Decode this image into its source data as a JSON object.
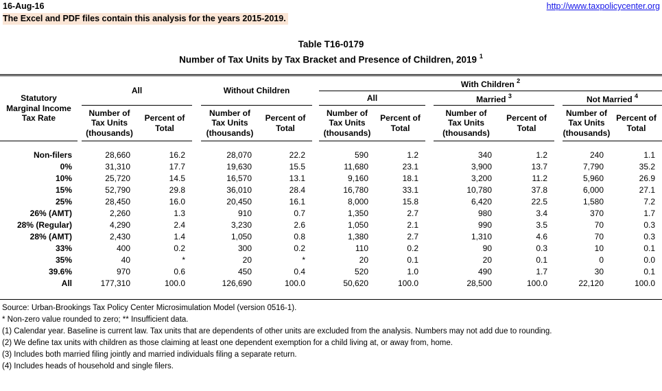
{
  "page": {
    "date": "16-Aug-16",
    "url": "http://www.taxpolicycenter.org",
    "banner": "The Excel and PDF files contain this analysis for the years 2015-2019.",
    "title1": "Table T16-0179",
    "title2": "Number of Tax Units by Tax Bracket and Presence of Children, 2019",
    "title2_sup": "1"
  },
  "colors": {
    "banner_highlight": "#fbe5d5",
    "link_blue": "#1414e8",
    "rule_black": "#000000"
  },
  "table": {
    "rate_header": {
      "l1": "Statutory",
      "l2": "Marginal Income",
      "l3": "Tax Rate"
    },
    "groups": {
      "all": "All",
      "without_children": "Without Children",
      "with_children": "With Children",
      "with_children_sup": "2",
      "wc_all": "All",
      "married": "Married",
      "married_sup": "3",
      "not_married": "Not Married",
      "not_married_sup": "4"
    },
    "sub_number": {
      "l1": "Number of",
      "l2": "Tax Units",
      "l3": "(thousands)"
    },
    "sub_percent": {
      "l1": "Percent of",
      "l2": "Total"
    },
    "rows": [
      {
        "rate": "Non-filers",
        "v": [
          "28,660",
          "16.2",
          "28,070",
          "22.2",
          "590",
          "1.2",
          "340",
          "1.2",
          "240",
          "1.1"
        ]
      },
      {
        "rate": "0%",
        "v": [
          "31,310",
          "17.7",
          "19,630",
          "15.5",
          "11,680",
          "23.1",
          "3,900",
          "13.7",
          "7,790",
          "35.2"
        ]
      },
      {
        "rate": "10%",
        "v": [
          "25,720",
          "14.5",
          "16,570",
          "13.1",
          "9,160",
          "18.1",
          "3,200",
          "11.2",
          "5,960",
          "26.9"
        ]
      },
      {
        "rate": "15%",
        "v": [
          "52,790",
          "29.8",
          "36,010",
          "28.4",
          "16,780",
          "33.1",
          "10,780",
          "37.8",
          "6,000",
          "27.1"
        ]
      },
      {
        "rate": "25%",
        "v": [
          "28,450",
          "16.0",
          "20,450",
          "16.1",
          "8,000",
          "15.8",
          "6,420",
          "22.5",
          "1,580",
          "7.2"
        ]
      },
      {
        "rate": "26% (AMT)",
        "v": [
          "2,260",
          "1.3",
          "910",
          "0.7",
          "1,350",
          "2.7",
          "980",
          "3.4",
          "370",
          "1.7"
        ]
      },
      {
        "rate": "28% (Regular)",
        "v": [
          "4,290",
          "2.4",
          "3,230",
          "2.6",
          "1,050",
          "2.1",
          "990",
          "3.5",
          "70",
          "0.3"
        ]
      },
      {
        "rate": "28% (AMT)",
        "v": [
          "2,430",
          "1.4",
          "1,050",
          "0.8",
          "1,380",
          "2.7",
          "1,310",
          "4.6",
          "70",
          "0.3"
        ]
      },
      {
        "rate": "33%",
        "v": [
          "400",
          "0.2",
          "300",
          "0.2",
          "110",
          "0.2",
          "90",
          "0.3",
          "10",
          "0.1"
        ]
      },
      {
        "rate": "35%",
        "v": [
          "40",
          "*",
          "20",
          "*",
          "20",
          "0.1",
          "20",
          "0.1",
          "0",
          "0.0"
        ]
      },
      {
        "rate": "39.6%",
        "v": [
          "970",
          "0.6",
          "450",
          "0.4",
          "520",
          "1.0",
          "490",
          "1.7",
          "30",
          "0.1"
        ]
      },
      {
        "rate": "All",
        "v": [
          "177,310",
          "100.0",
          "126,690",
          "100.0",
          "50,620",
          "100.0",
          "28,500",
          "100.0",
          "22,120",
          "100.0"
        ]
      }
    ]
  },
  "footnotes": [
    "Source: Urban-Brookings Tax Policy Center Microsimulation Model (version 0516-1).",
    "* Non-zero value rounded to zero; ** Insufficient data.",
    "(1) Calendar year. Baseline is current law. Tax units that are dependents of other units are excluded from the analysis. Numbers may not add due to rounding.",
    "(2) We define tax units with children as those claiming at least one dependent exemption for a child living at, or away from, home.",
    "(3) Includes both married filing jointly and married individuals filing a separate return.",
    "(4) Includes heads of household and single filers."
  ]
}
